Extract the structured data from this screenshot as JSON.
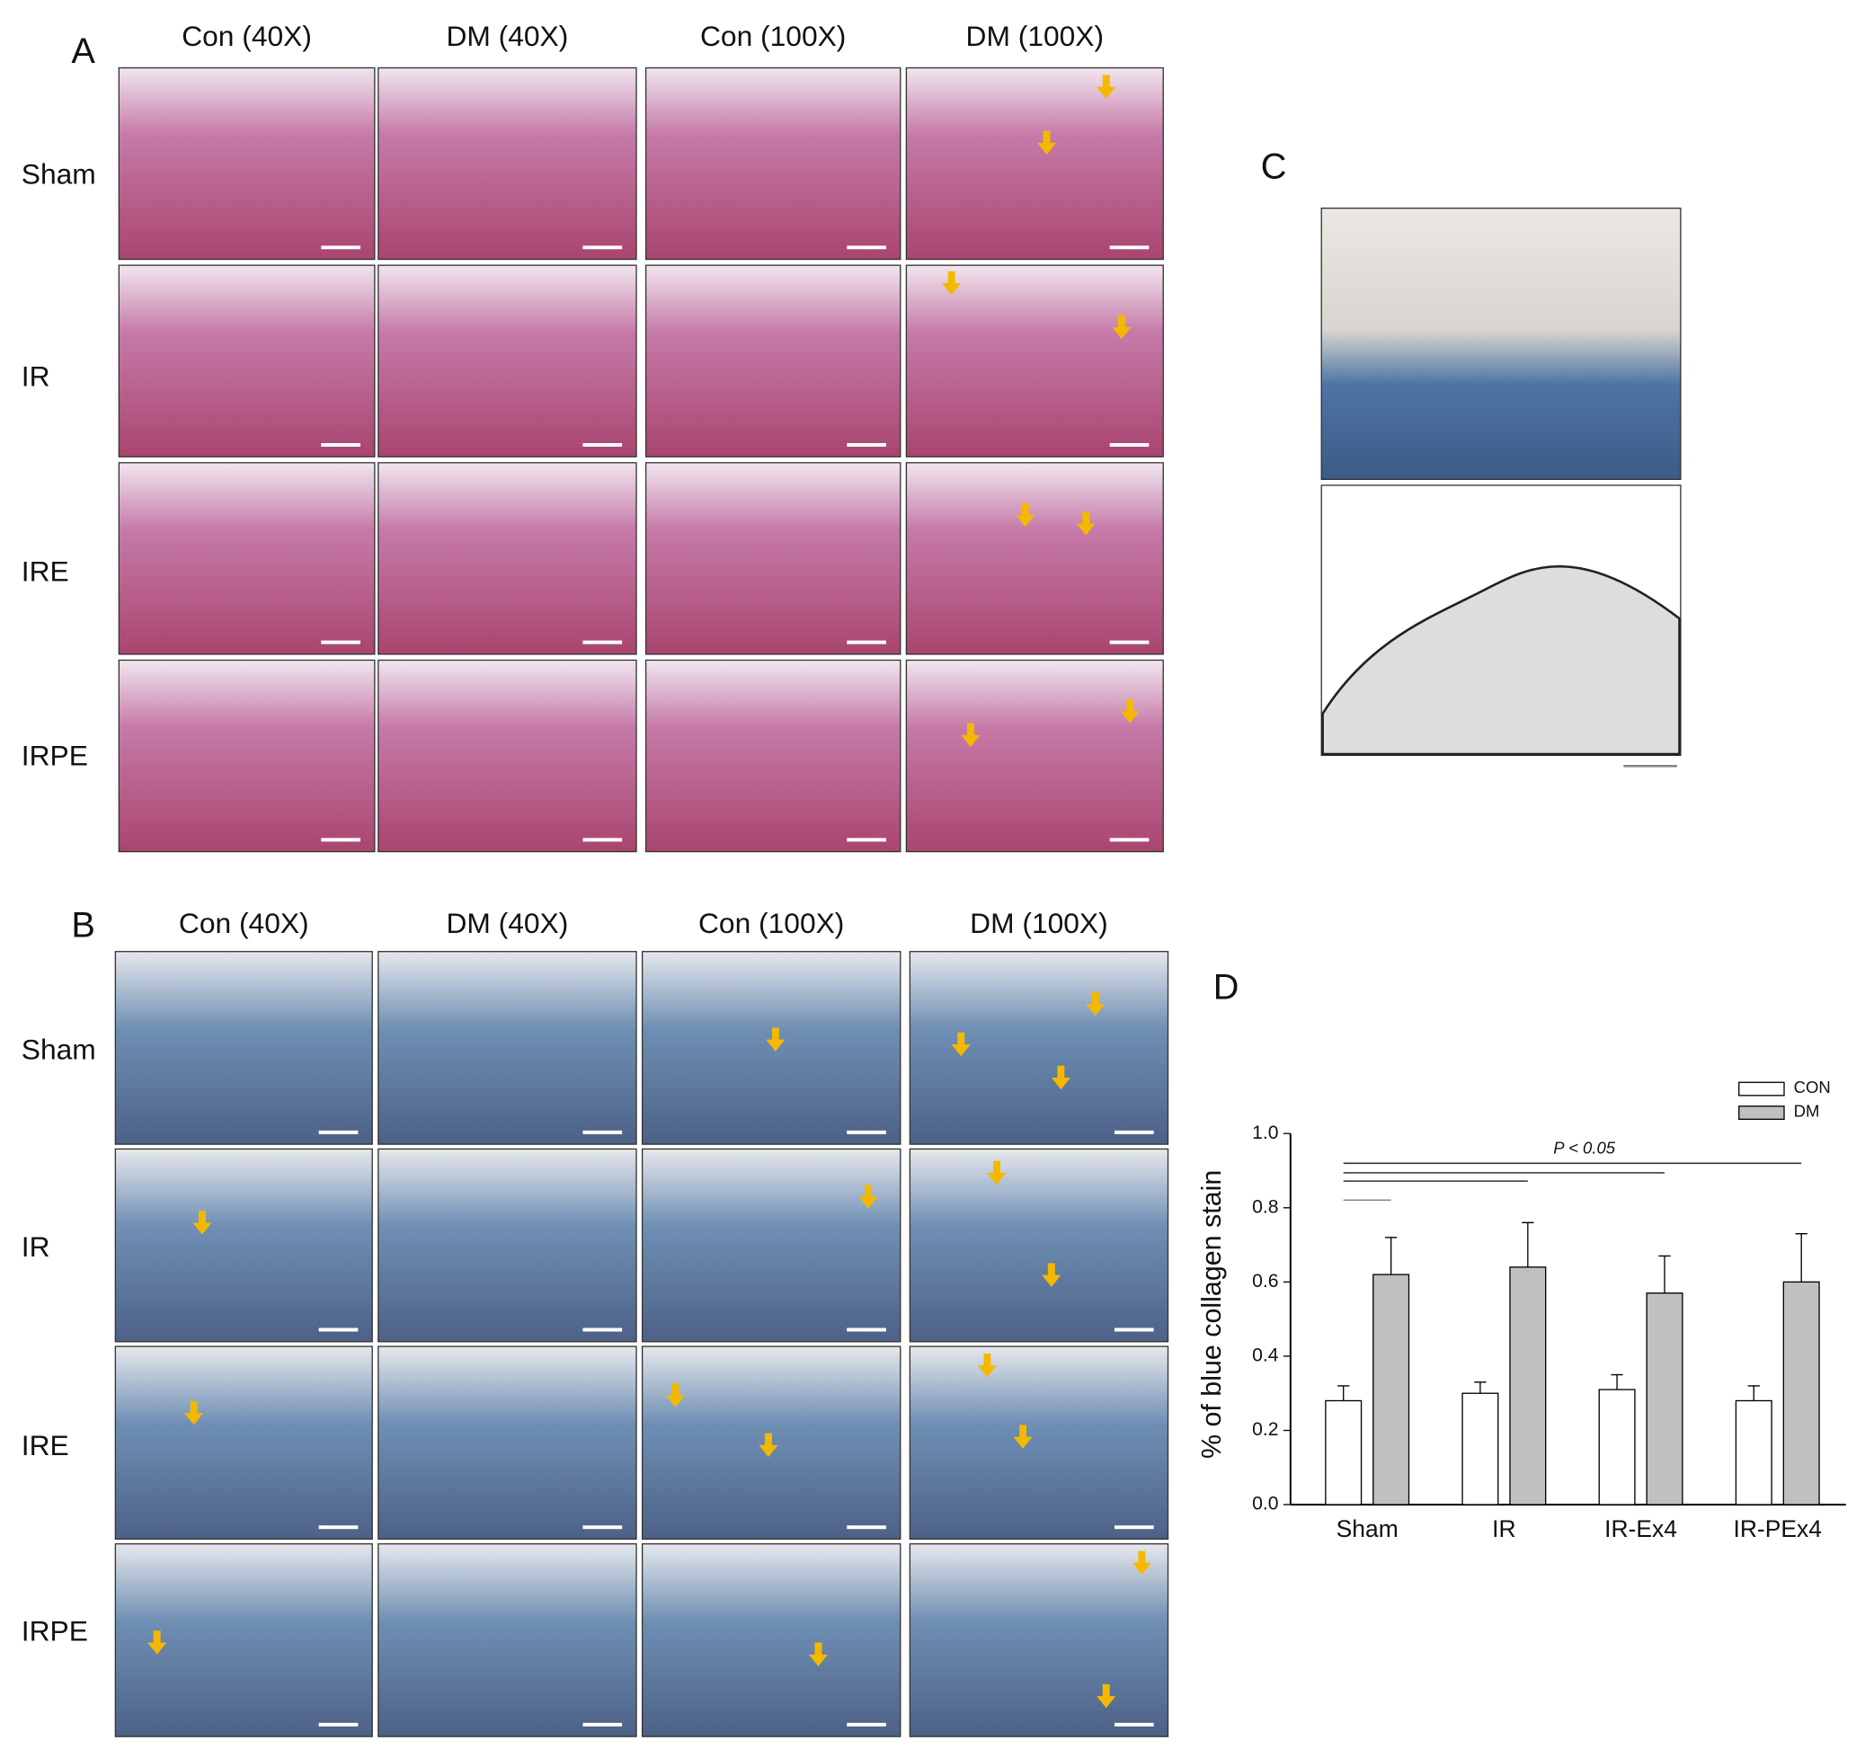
{
  "panel_a": {
    "label": "A",
    "columns": [
      "Con (40X)",
      "DM (40X)",
      "Con (100X)",
      "DM (100X)"
    ],
    "rows": [
      "Sham",
      "IR",
      "IRE",
      "IRPE"
    ]
  },
  "panel_b": {
    "label": "B",
    "columns": [
      "Con (40X)",
      "DM (40X)",
      "Con (100X)",
      "DM (100X)"
    ],
    "rows": [
      "Sham",
      "IR",
      "IRE",
      "IRPE"
    ]
  },
  "panel_c": {
    "label": "C"
  },
  "chart_data": {
    "type": "bar",
    "panel_label": "D",
    "ylabel": "% of blue collagen stain",
    "categories": [
      "Sham",
      "IR",
      "IR-Ex4",
      "IR-PEx4"
    ],
    "series": [
      {
        "name": "CON",
        "color": "#ffffff",
        "values": [
          0.28,
          0.3,
          0.31,
          0.28
        ],
        "errors": [
          0.04,
          0.03,
          0.04,
          0.04
        ]
      },
      {
        "name": "DM",
        "color": "#c0c0c0",
        "values": [
          0.62,
          0.64,
          0.57,
          0.6
        ],
        "errors": [
          0.1,
          0.12,
          0.1,
          0.13
        ]
      }
    ],
    "ylim": [
      0,
      1.0
    ],
    "yticks": [
      {
        "value": 0,
        "label": "0.0"
      },
      {
        "value": 0.2,
        "label": "0.2"
      },
      {
        "value": 0.4,
        "label": "0.4"
      },
      {
        "value": 0.6,
        "label": "0.6"
      },
      {
        "value": 0.8,
        "label": "0.8"
      },
      {
        "value": 1.0,
        "label": "1.0"
      }
    ],
    "annotation": "P < 0.05",
    "legend": "top-right"
  }
}
